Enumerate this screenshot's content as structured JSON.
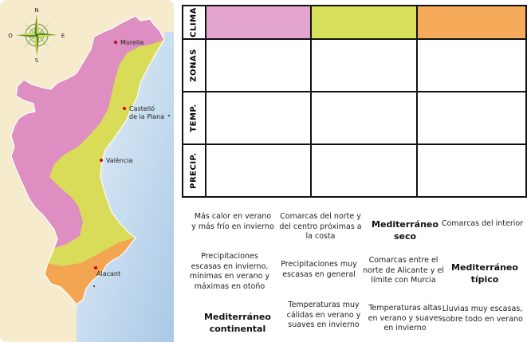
{
  "compass": {
    "north": "N",
    "south": "S",
    "east": "E",
    "west": "O"
  },
  "map": {
    "cities": [
      "Morella",
      "Castelló\nde la Plana",
      "València",
      "Alacant"
    ],
    "colors": {
      "continental": "#de8ec0",
      "tipico": "#d8dc58",
      "seco": "#f4a552",
      "sea": "#c6dff0"
    }
  },
  "table": {
    "row_headers": [
      "CLIMA",
      "ZONAS",
      "TEMP.",
      "PRECIP."
    ],
    "clima_colors": [
      "#e3a5cf",
      "#d8e15c",
      "#f5ab5a"
    ]
  },
  "cards": [
    {
      "text": "Más calor en verano y más frío en invierno",
      "bold": false
    },
    {
      "text": "Comarcas del norte y del centro próximas a la costa",
      "bold": false
    },
    {
      "text": "Mediterráneo seco",
      "bold": true
    },
    {
      "text": "Comarcas del interior",
      "bold": false
    },
    {
      "text": "Precipitaciones escasas en invierno, mínimas en verano y máximas en otoño",
      "bold": false
    },
    {
      "text": "Precipitaciones muy escasas en general",
      "bold": false
    },
    {
      "text": "Comarcas entre el norte de Alicante y el límite con Murcia",
      "bold": false
    },
    {
      "text": "Mediterráneo típico",
      "bold": true
    },
    {
      "text": "Mediterráneo continental",
      "bold": true
    },
    {
      "text": "Temperaturas muy cálidas en verano y suaves en invierno",
      "bold": false
    },
    {
      "text": "Temperaturas altas en verano y suaves en invierno",
      "bold": false
    },
    {
      "text": "Lluvias muy escasas, sobre todo en verano",
      "bold": false
    }
  ]
}
